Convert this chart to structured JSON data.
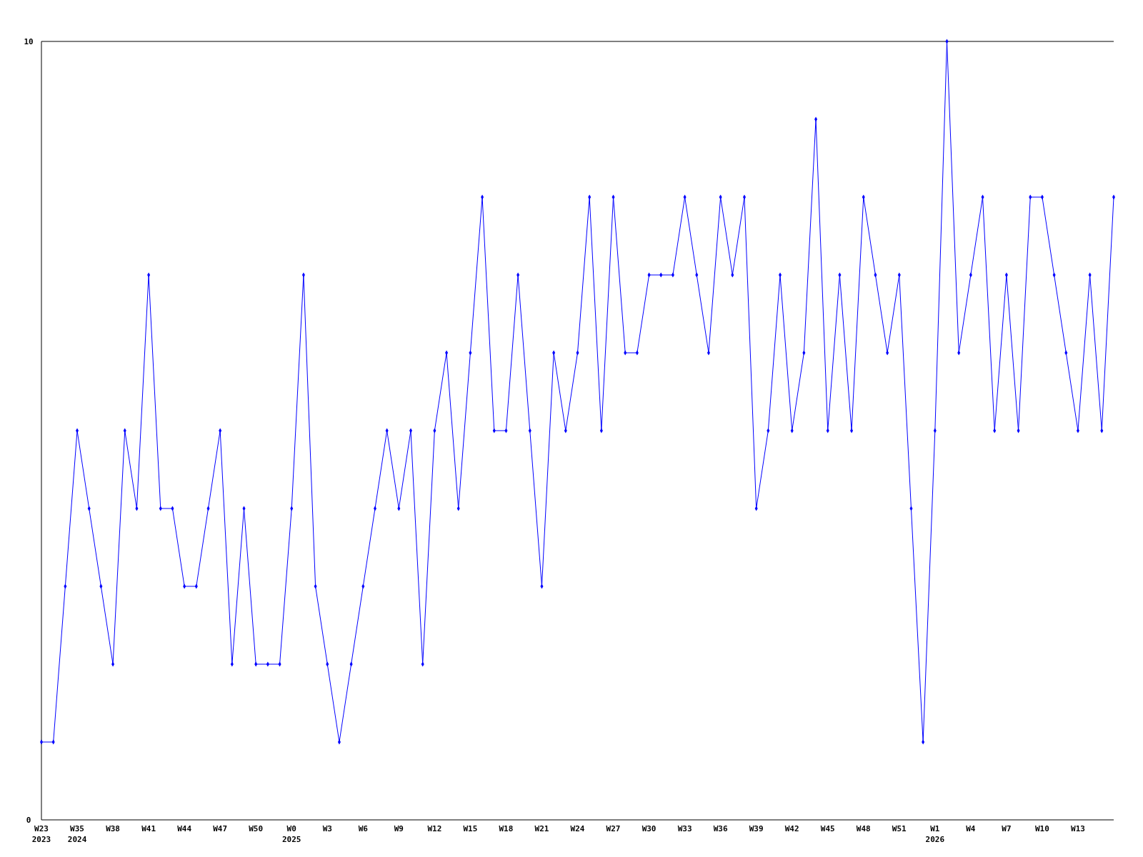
{
  "chart_data": {
    "type": "line",
    "categories": [
      "W23\n2023",
      null,
      null,
      "W35\n2024",
      null,
      null,
      "W38",
      null,
      null,
      "W41",
      null,
      null,
      "W44",
      null,
      null,
      "W47",
      null,
      null,
      "W50",
      null,
      null,
      "W0\n2025",
      null,
      null,
      "W3",
      null,
      null,
      "W6",
      null,
      null,
      "W9",
      null,
      null,
      "W12",
      null,
      null,
      "W15",
      null,
      null,
      "W18",
      null,
      null,
      "W21",
      null,
      null,
      "W24",
      null,
      null,
      "W27",
      null,
      null,
      "W30",
      null,
      null,
      "W33",
      null,
      null,
      "W36",
      null,
      null,
      "W39",
      null,
      null,
      "W42",
      null,
      null,
      "W45",
      null,
      null,
      "W48",
      null,
      null,
      "W51",
      null,
      null,
      "W1\n2026",
      null,
      null,
      "W4",
      null,
      null,
      "W7",
      null,
      null,
      "W10",
      null,
      null,
      "W13",
      null,
      null,
      null
    ],
    "series": [
      {
        "color": "#0000ff",
        "values": [
          1,
          1,
          3,
          5,
          4,
          3,
          2,
          5,
          4,
          7,
          4,
          4,
          3,
          3,
          4,
          5,
          2,
          4,
          2,
          2,
          2,
          4,
          7,
          3,
          2,
          1,
          2,
          3,
          4,
          5,
          4,
          5,
          2,
          5,
          6,
          4,
          6,
          8,
          5,
          5,
          7,
          5,
          3,
          6,
          5,
          6,
          8,
          5,
          8,
          6,
          6,
          7,
          7,
          7,
          8,
          7,
          6,
          8,
          7,
          8,
          4,
          5,
          7,
          5,
          6,
          9,
          5,
          7,
          5,
          8,
          7,
          6,
          7,
          4,
          1,
          5,
          10,
          6,
          7,
          8,
          5,
          7,
          5,
          8,
          8,
          7,
          6,
          5,
          7,
          5,
          8
        ]
      }
    ],
    "ylim": [
      0,
      10
    ],
    "yticks": [
      0,
      10
    ],
    "grid": false,
    "marker": "diamond",
    "line_style": "solid"
  }
}
